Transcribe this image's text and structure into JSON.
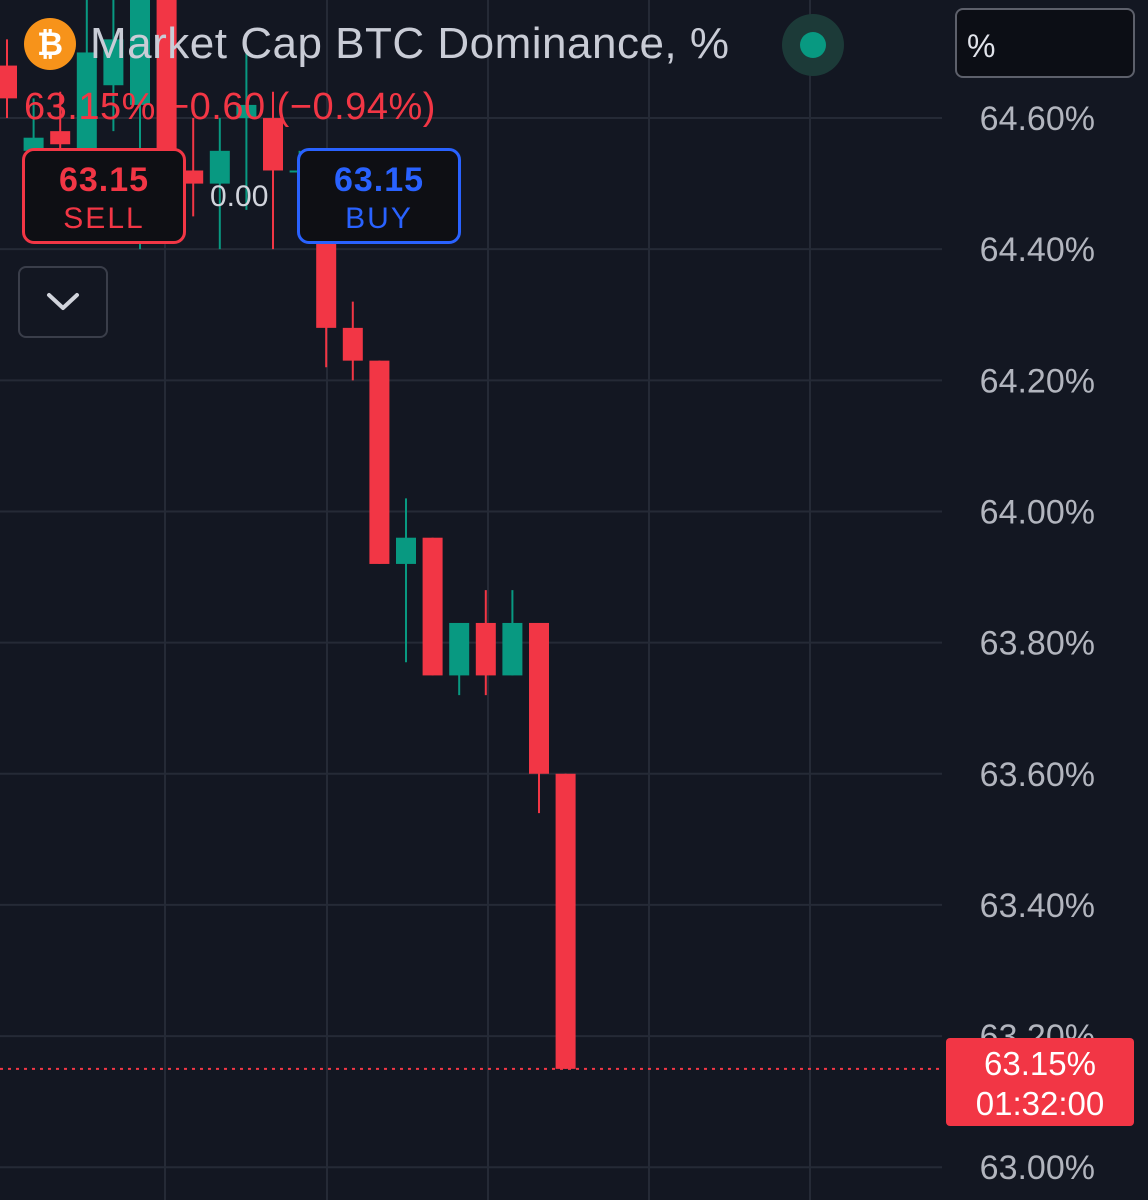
{
  "header": {
    "title": "Market Cap BTC Dominance, %",
    "icon": "bitcoin-icon",
    "status_dot_color": "#089981"
  },
  "unit_selector": {
    "value": "%"
  },
  "change_line": {
    "text": "63.15%  −0.60  (−0.94%)"
  },
  "sell_button": {
    "price": "63.15",
    "label": "SELL"
  },
  "buy_button": {
    "price": "63.15",
    "label": "BUY"
  },
  "spread": {
    "value": "0.00"
  },
  "collapse_button": {
    "icon": "chevron-down-icon"
  },
  "last_price_tag": {
    "price": "63.15%",
    "countdown": "01:32:00"
  },
  "colors": {
    "background": "#131722",
    "up": "#089981",
    "down": "#f23645",
    "buy": "#2962ff",
    "grid": "#252a36"
  },
  "chart_data": {
    "type": "candlestick",
    "title": "Market Cap BTC Dominance, %",
    "ylim": [
      62.95,
      64.78
    ],
    "y_ticks": [
      "64.60%",
      "64.40%",
      "64.20%",
      "64.00%",
      "63.80%",
      "63.60%",
      "63.40%",
      "63.20%",
      "63.00%"
    ],
    "y_tick_values": [
      64.6,
      64.4,
      64.2,
      64.0,
      63.8,
      63.6,
      63.4,
      63.2,
      63.0
    ],
    "grid": true,
    "last_price": 63.15,
    "candles": [
      {
        "open": 64.68,
        "high": 64.72,
        "low": 64.6,
        "close": 64.63
      },
      {
        "open": 64.55,
        "high": 64.63,
        "low": 64.52,
        "close": 64.57
      },
      {
        "open": 64.58,
        "high": 64.64,
        "low": 64.5,
        "close": 64.56
      },
      {
        "open": 64.55,
        "high": 64.82,
        "low": 64.46,
        "close": 64.7
      },
      {
        "open": 64.65,
        "high": 64.8,
        "low": 64.58,
        "close": 64.72
      },
      {
        "open": 64.62,
        "high": 64.84,
        "low": 64.4,
        "close": 64.78
      },
      {
        "open": 64.82,
        "high": 64.84,
        "low": 64.5,
        "close": 64.52
      },
      {
        "open": 64.52,
        "high": 64.6,
        "low": 64.45,
        "close": 64.5
      },
      {
        "open": 64.5,
        "high": 64.6,
        "low": 64.4,
        "close": 64.55
      },
      {
        "open": 64.6,
        "high": 64.7,
        "low": 64.46,
        "close": 64.62
      },
      {
        "open": 64.6,
        "high": 64.64,
        "low": 64.4,
        "close": 64.52
      },
      {
        "open": 64.52,
        "high": 64.55,
        "low": 64.5,
        "close": 64.52
      },
      {
        "open": 64.45,
        "high": 64.5,
        "low": 64.22,
        "close": 64.28
      },
      {
        "open": 64.28,
        "high": 64.32,
        "low": 64.2,
        "close": 64.23
      },
      {
        "open": 64.23,
        "high": 64.23,
        "low": 63.92,
        "close": 63.92
      },
      {
        "open": 63.92,
        "high": 64.02,
        "low": 63.77,
        "close": 63.96
      },
      {
        "open": 63.96,
        "high": 63.96,
        "low": 63.75,
        "close": 63.75
      },
      {
        "open": 63.75,
        "high": 63.83,
        "low": 63.72,
        "close": 63.83
      },
      {
        "open": 63.83,
        "high": 63.88,
        "low": 63.72,
        "close": 63.75
      },
      {
        "open": 63.75,
        "high": 63.88,
        "low": 63.75,
        "close": 63.83
      },
      {
        "open": 63.83,
        "high": 63.83,
        "low": 63.54,
        "close": 63.6
      },
      {
        "open": 63.6,
        "high": 63.6,
        "low": 63.15,
        "close": 63.15
      }
    ]
  }
}
